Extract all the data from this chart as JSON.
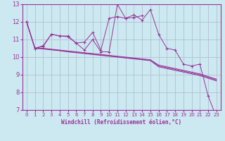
{
  "xlabel": "Windchill (Refroidissement éolien,°C)",
  "background_color": "#cce8f0",
  "grid_color": "#aabbcc",
  "line_color": "#993399",
  "xlim": [
    -0.5,
    23.5
  ],
  "ylim": [
    7,
    13
  ],
  "yticks": [
    7,
    8,
    9,
    10,
    11,
    12,
    13
  ],
  "xticks": [
    0,
    1,
    2,
    3,
    4,
    5,
    6,
    7,
    8,
    9,
    10,
    11,
    12,
    13,
    14,
    15,
    16,
    17,
    18,
    19,
    20,
    21,
    22,
    23
  ],
  "line1_x": [
    0,
    1,
    2,
    3,
    4,
    5,
    6,
    7,
    8,
    9,
    10,
    11,
    12,
    13,
    14,
    15,
    16,
    17,
    18,
    19,
    20,
    21,
    22,
    23
  ],
  "line1_y": [
    12.0,
    10.5,
    10.6,
    11.3,
    11.2,
    11.2,
    10.8,
    10.4,
    11.0,
    10.3,
    10.3,
    13.0,
    12.2,
    12.4,
    12.1,
    12.7,
    11.3,
    10.5,
    10.4,
    9.6,
    9.5,
    9.6,
    7.8,
    6.6
  ],
  "line2_x": [
    0,
    1,
    2,
    3,
    4,
    5,
    6,
    7,
    8,
    9,
    10,
    11,
    12,
    13,
    14
  ],
  "line2_y": [
    12.0,
    10.5,
    10.65,
    11.3,
    11.2,
    11.15,
    10.8,
    10.85,
    11.4,
    10.4,
    12.2,
    12.3,
    12.2,
    12.25,
    12.35
  ],
  "line3_x": [
    0,
    1,
    2,
    3,
    4,
    5,
    6,
    7,
    8,
    9,
    10,
    11,
    12,
    13,
    14,
    15,
    16,
    17,
    18,
    19,
    20,
    21,
    22,
    23
  ],
  "line3_y": [
    12.0,
    10.5,
    10.5,
    10.45,
    10.4,
    10.35,
    10.3,
    10.25,
    10.2,
    10.15,
    10.1,
    10.05,
    10.0,
    9.95,
    9.9,
    9.85,
    9.55,
    9.45,
    9.35,
    9.25,
    9.15,
    9.05,
    8.9,
    8.75
  ],
  "line4_x": [
    0,
    1,
    2,
    3,
    4,
    5,
    6,
    7,
    8,
    9,
    10,
    11,
    12,
    13,
    14,
    15,
    16,
    17,
    18,
    19,
    20,
    21,
    22,
    23
  ],
  "line4_y": [
    12.0,
    10.5,
    10.48,
    10.43,
    10.38,
    10.32,
    10.27,
    10.22,
    10.17,
    10.12,
    10.07,
    10.02,
    9.97,
    9.92,
    9.87,
    9.82,
    9.5,
    9.4,
    9.3,
    9.2,
    9.1,
    9.0,
    8.85,
    8.7
  ],
  "line5_x": [
    0,
    1,
    2,
    3,
    4,
    5,
    6,
    7,
    8,
    9,
    10,
    11,
    12,
    13,
    14,
    15,
    16,
    17,
    18,
    19,
    20,
    21,
    22,
    23
  ],
  "line5_y": [
    12.0,
    10.5,
    10.46,
    10.41,
    10.36,
    10.3,
    10.25,
    10.2,
    10.15,
    10.1,
    10.05,
    10.0,
    9.95,
    9.9,
    9.85,
    9.8,
    9.45,
    9.35,
    9.25,
    9.15,
    9.05,
    8.95,
    8.8,
    8.65
  ]
}
